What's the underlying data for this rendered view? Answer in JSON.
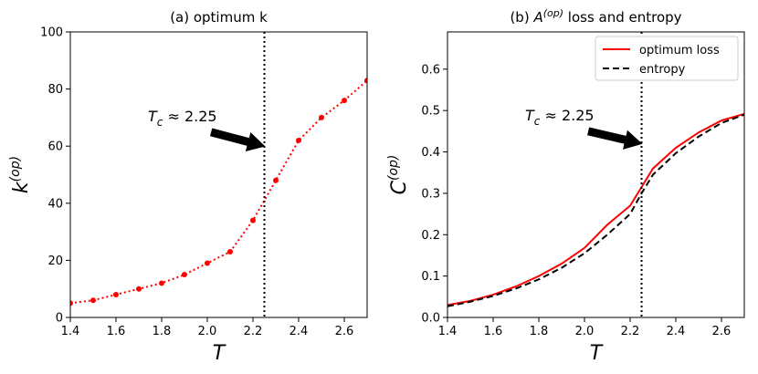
{
  "chart_data": [
    {
      "type": "line",
      "title": "(a) optimum k",
      "xlabel": "T",
      "ylabel": "k(op)",
      "ylabel_base": "k",
      "ylabel_sup": "(op)",
      "xlim": [
        1.4,
        2.7
      ],
      "ylim": [
        0,
        100
      ],
      "xticks": [
        "1.4",
        "1.6",
        "1.8",
        "2.0",
        "2.2",
        "2.4",
        "2.6"
      ],
      "yticks": [
        "0",
        "20",
        "40",
        "60",
        "80",
        "100"
      ],
      "series": [
        {
          "name": "optimum k",
          "color": "#ff0000",
          "style": "dotted-markers",
          "x": [
            1.4,
            1.5,
            1.6,
            1.7,
            1.8,
            1.9,
            2.0,
            2.1,
            2.2,
            2.3,
            2.4,
            2.5,
            2.6,
            2.7
          ],
          "y": [
            5,
            6,
            8,
            10,
            12,
            15,
            19,
            23,
            34,
            48,
            62,
            70,
            76,
            83
          ]
        }
      ],
      "vline": {
        "x": 2.25,
        "color": "#000000"
      },
      "annotation": {
        "text": "Tc ≈ 2.25",
        "base": "T",
        "sub": "c",
        "rest": " ≈ 2.25",
        "arrow_to": [
          2.25,
          60
        ]
      }
    },
    {
      "type": "line",
      "title": "(b) A(op) loss and entropy",
      "title_pre": "(b) ",
      "title_base": "A",
      "title_sup": "(op)",
      "title_post": " loss and entropy",
      "xlabel": "T",
      "ylabel": "C(op)",
      "ylabel_base": "C",
      "ylabel_sup": "(op)",
      "xlim": [
        1.4,
        2.7
      ],
      "ylim": [
        0,
        0.69
      ],
      "xticks": [
        "1.4",
        "1.6",
        "1.8",
        "2.0",
        "2.2",
        "2.4",
        "2.6"
      ],
      "yticks": [
        "0.0",
        "0.1",
        "0.2",
        "0.3",
        "0.4",
        "0.5",
        "0.6"
      ],
      "legend_position": "top-right",
      "series": [
        {
          "name": "optimum loss",
          "color": "#ff0000",
          "style": "solid",
          "x": [
            1.4,
            1.5,
            1.6,
            1.7,
            1.8,
            1.9,
            2.0,
            2.1,
            2.2,
            2.25,
            2.3,
            2.4,
            2.5,
            2.6,
            2.7
          ],
          "y": [
            0.03,
            0.04,
            0.055,
            0.075,
            0.1,
            0.13,
            0.168,
            0.224,
            0.27,
            0.315,
            0.36,
            0.41,
            0.447,
            0.476,
            0.492
          ]
        },
        {
          "name": "entropy",
          "color": "#000000",
          "style": "dashed",
          "x": [
            1.4,
            1.5,
            1.6,
            1.7,
            1.8,
            1.9,
            2.0,
            2.1,
            2.2,
            2.25,
            2.3,
            2.4,
            2.5,
            2.6,
            2.7
          ],
          "y": [
            0.027,
            0.038,
            0.052,
            0.07,
            0.092,
            0.12,
            0.155,
            0.2,
            0.25,
            0.3,
            0.345,
            0.397,
            0.437,
            0.47,
            0.49
          ]
        }
      ],
      "vline": {
        "x": 2.25,
        "color": "#000000"
      },
      "annotation": {
        "text": "Tc ≈ 2.25",
        "base": "T",
        "sub": "c",
        "rest": " ≈ 2.25",
        "arrow_to": [
          2.25,
          0.42
        ]
      }
    }
  ]
}
